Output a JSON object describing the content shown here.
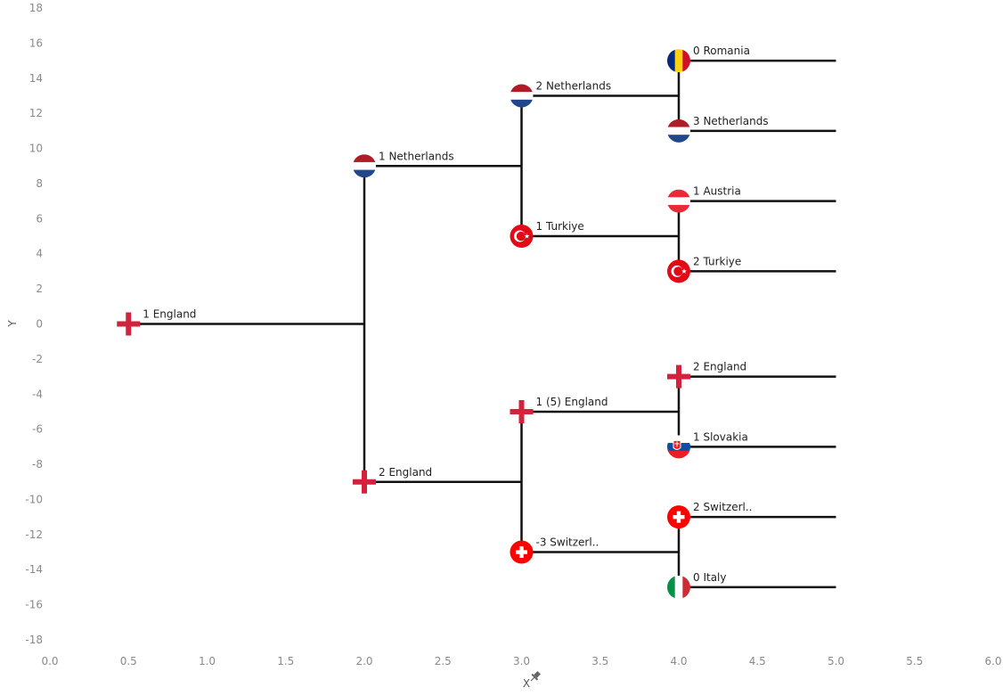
{
  "chart_data": {
    "type": "scatter",
    "title": "",
    "xlabel": "X",
    "ylabel": "Y",
    "xlim": [
      0,
      6
    ],
    "ylim": [
      -18,
      18
    ],
    "x_ticks": [
      "0.0",
      "0.5",
      "1.0",
      "1.5",
      "2.0",
      "2.5",
      "3.0",
      "3.5",
      "4.0",
      "4.5",
      "5.0",
      "5.5",
      "6.0"
    ],
    "y_ticks": [
      "18",
      "16",
      "14",
      "12",
      "10",
      "8",
      "6",
      "4",
      "2",
      "0",
      "-2",
      "-4",
      "-6",
      "-8",
      "-10",
      "-12",
      "-14",
      "-16",
      "-18"
    ],
    "grid": false,
    "points": [
      {
        "x": 0.5,
        "y": 0,
        "label": "1 England",
        "flag": "england"
      },
      {
        "x": 2.0,
        "y": 9,
        "label": "1 Netherlands",
        "flag": "netherlands"
      },
      {
        "x": 2.0,
        "y": -9,
        "label": "2 England",
        "flag": "england"
      },
      {
        "x": 3.0,
        "y": 13,
        "label": "2 Netherlands",
        "flag": "netherlands"
      },
      {
        "x": 3.0,
        "y": 5,
        "label": "1 Turkiye",
        "flag": "turkey"
      },
      {
        "x": 3.0,
        "y": -5,
        "label": "1 (5) England",
        "flag": "england"
      },
      {
        "x": 3.0,
        "y": -13,
        "label": "-3 Switzerl..",
        "flag": "switzerland"
      },
      {
        "x": 4.0,
        "y": 15,
        "label": "0 Romania",
        "flag": "romania"
      },
      {
        "x": 4.0,
        "y": 11,
        "label": "3 Netherlands",
        "flag": "netherlands"
      },
      {
        "x": 4.0,
        "y": 7,
        "label": "1 Austria",
        "flag": "austria"
      },
      {
        "x": 4.0,
        "y": 3,
        "label": "2 Turkiye",
        "flag": "turkey"
      },
      {
        "x": 4.0,
        "y": -3,
        "label": "2 England",
        "flag": "england"
      },
      {
        "x": 4.0,
        "y": -7,
        "label": "1 Slovakia",
        "flag": "slovakia"
      },
      {
        "x": 4.0,
        "y": -11,
        "label": "2 Switzerl..",
        "flag": "switzerland"
      },
      {
        "x": 4.0,
        "y": -15,
        "label": "0 Italy",
        "flag": "italy"
      }
    ],
    "bracket_lines": [
      [
        [
          0.5,
          0
        ],
        [
          2.0,
          0
        ]
      ],
      [
        [
          2.0,
          9
        ],
        [
          2.0,
          -9
        ]
      ],
      [
        [
          2.0,
          9
        ],
        [
          3.0,
          9
        ]
      ],
      [
        [
          2.0,
          -9
        ],
        [
          3.0,
          -9
        ]
      ],
      [
        [
          3.0,
          13
        ],
        [
          3.0,
          5
        ]
      ],
      [
        [
          3.0,
          -5
        ],
        [
          3.0,
          -13
        ]
      ],
      [
        [
          3.0,
          13
        ],
        [
          4.0,
          13
        ]
      ],
      [
        [
          3.0,
          5
        ],
        [
          4.0,
          5
        ]
      ],
      [
        [
          3.0,
          -5
        ],
        [
          4.0,
          -5
        ]
      ],
      [
        [
          3.0,
          -13
        ],
        [
          4.0,
          -13
        ]
      ],
      [
        [
          4.0,
          15
        ],
        [
          4.0,
          11
        ]
      ],
      [
        [
          4.0,
          7
        ],
        [
          4.0,
          3
        ]
      ],
      [
        [
          4.0,
          -3
        ],
        [
          4.0,
          -7
        ]
      ],
      [
        [
          4.0,
          -11
        ],
        [
          4.0,
          -15
        ]
      ],
      [
        [
          4.0,
          15
        ],
        [
          5.0,
          15
        ]
      ],
      [
        [
          4.0,
          11
        ],
        [
          5.0,
          11
        ]
      ],
      [
        [
          4.0,
          7
        ],
        [
          5.0,
          7
        ]
      ],
      [
        [
          4.0,
          3
        ],
        [
          5.0,
          3
        ]
      ],
      [
        [
          4.0,
          -3
        ],
        [
          5.0,
          -3
        ]
      ],
      [
        [
          4.0,
          -7
        ],
        [
          5.0,
          -7
        ]
      ],
      [
        [
          4.0,
          -11
        ],
        [
          5.0,
          -11
        ]
      ],
      [
        [
          4.0,
          -15
        ],
        [
          5.0,
          -15
        ]
      ]
    ],
    "flag_colors": {
      "england_cross": "#d4213d",
      "netherlands": [
        "#ae1c28",
        "#ffffff",
        "#21468b"
      ],
      "turkey": "#e30a17",
      "switzerland": "#ff0000",
      "romania": [
        "#002b7f",
        "#fcd116",
        "#ce1126"
      ],
      "austria": [
        "#ed2939",
        "#ffffff",
        "#ed2939"
      ],
      "slovakia": [
        "#ffffff",
        "#0b4ea2",
        "#ee1c25"
      ],
      "italy": [
        "#009246",
        "#ffffff",
        "#ce2b37"
      ]
    }
  },
  "pin_icon": "pin-icon"
}
